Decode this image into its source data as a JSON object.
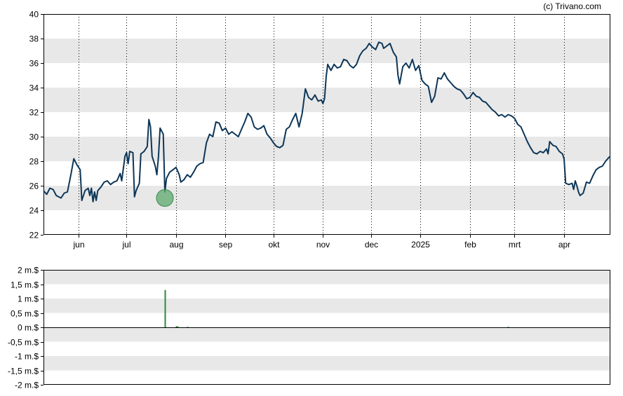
{
  "credit": "(c) Trivano.com",
  "colors": {
    "price_line": "#0d3658",
    "volume_bar": "#2a8a3a",
    "band_fill": "#e8e8e8",
    "marker_fill": "#5daa6e",
    "marker_stroke": "#3a8a4a",
    "frame": "#000000"
  },
  "chart_data": [
    {
      "type": "line",
      "title": "",
      "xlabel": "",
      "ylabel": "",
      "ylim": [
        22,
        40
      ],
      "y_ticks": [
        22,
        24,
        26,
        28,
        30,
        32,
        34,
        36,
        38,
        40
      ],
      "y_tick_labels": [
        "22",
        "24",
        "26",
        "28",
        "30",
        "32",
        "34",
        "36",
        "38",
        "40"
      ],
      "shaded_bands": [
        [
          24,
          26
        ],
        [
          28,
          30
        ],
        [
          32,
          34
        ],
        [
          36,
          38
        ]
      ],
      "x_range": [
        "2024-05-10",
        "2025-04-30"
      ],
      "x_ticks": [
        {
          "date": "2024-06-01",
          "label": "jun"
        },
        {
          "date": "2024-07-01",
          "label": "jul"
        },
        {
          "date": "2024-08-01",
          "label": "aug"
        },
        {
          "date": "2024-09-01",
          "label": "sep"
        },
        {
          "date": "2024-10-01",
          "label": "okt"
        },
        {
          "date": "2024-11-01",
          "label": "nov"
        },
        {
          "date": "2024-12-01",
          "label": "dec"
        },
        {
          "date": "2025-01-01",
          "label": "2025"
        },
        {
          "date": "2025-02-01",
          "label": "feb"
        },
        {
          "date": "2025-03-01",
          "label": "mrt"
        },
        {
          "date": "2025-04-01",
          "label": "apr"
        }
      ],
      "grid": "vertical dotted at month ticks",
      "series": [
        {
          "points": [
            [
              "2024-05-10",
              25.6
            ],
            [
              "2024-05-12",
              25.3
            ],
            [
              "2024-05-14",
              25.8
            ],
            [
              "2024-05-16",
              25.7
            ],
            [
              "2024-05-18",
              25.2
            ],
            [
              "2024-05-21",
              25.0
            ],
            [
              "2024-05-23",
              25.4
            ],
            [
              "2024-05-25",
              25.5
            ],
            [
              "2024-05-27",
              26.8
            ],
            [
              "2024-05-29",
              28.2
            ],
            [
              "2024-05-31",
              27.7
            ],
            [
              "2024-06-02",
              27.3
            ],
            [
              "2024-06-03",
              24.8
            ],
            [
              "2024-06-05",
              25.6
            ],
            [
              "2024-06-07",
              25.8
            ],
            [
              "2024-06-08",
              25.2
            ],
            [
              "2024-06-09",
              25.8
            ],
            [
              "2024-06-10",
              24.7
            ],
            [
              "2024-06-11",
              25.5
            ],
            [
              "2024-06-12",
              24.8
            ],
            [
              "2024-06-13",
              25.6
            ],
            [
              "2024-06-15",
              25.9
            ],
            [
              "2024-06-17",
              26.3
            ],
            [
              "2024-06-19",
              26.4
            ],
            [
              "2024-06-21",
              26.1
            ],
            [
              "2024-06-23",
              26.3
            ],
            [
              "2024-06-25",
              26.4
            ],
            [
              "2024-06-27",
              27.0
            ],
            [
              "2024-06-28",
              26.4
            ],
            [
              "2024-06-30",
              28.4
            ],
            [
              "2024-07-01",
              28.7
            ],
            [
              "2024-07-02",
              27.8
            ],
            [
              "2024-07-03",
              28.8
            ],
            [
              "2024-07-05",
              28.7
            ],
            [
              "2024-07-06",
              25.1
            ],
            [
              "2024-07-07",
              25.6
            ],
            [
              "2024-07-09",
              26.2
            ],
            [
              "2024-07-10",
              28.6
            ],
            [
              "2024-07-12",
              28.8
            ],
            [
              "2024-07-14",
              29.2
            ],
            [
              "2024-07-15",
              31.4
            ],
            [
              "2024-07-16",
              30.8
            ],
            [
              "2024-07-17",
              28.4
            ],
            [
              "2024-07-19",
              27.6
            ],
            [
              "2024-07-20",
              26.9
            ],
            [
              "2024-07-21",
              28.4
            ],
            [
              "2024-07-22",
              30.7
            ],
            [
              "2024-07-24",
              30.2
            ],
            [
              "2024-07-25",
              25.5
            ],
            [
              "2024-07-26",
              26.6
            ],
            [
              "2024-07-28",
              27.1
            ],
            [
              "2024-07-30",
              27.3
            ],
            [
              "2024-08-01",
              27.5
            ],
            [
              "2024-08-03",
              26.9
            ],
            [
              "2024-08-04",
              26.3
            ],
            [
              "2024-08-06",
              26.5
            ],
            [
              "2024-08-08",
              26.9
            ],
            [
              "2024-08-10",
              26.7
            ],
            [
              "2024-08-12",
              27.1
            ],
            [
              "2024-08-14",
              27.6
            ],
            [
              "2024-08-16",
              27.8
            ],
            [
              "2024-08-18",
              27.9
            ],
            [
              "2024-08-20",
              29.5
            ],
            [
              "2024-08-22",
              30.2
            ],
            [
              "2024-08-24",
              30.0
            ],
            [
              "2024-08-26",
              31.2
            ],
            [
              "2024-08-28",
              31.1
            ],
            [
              "2024-08-30",
              30.5
            ],
            [
              "2024-09-01",
              30.7
            ],
            [
              "2024-09-03",
              30.2
            ],
            [
              "2024-09-05",
              30.4
            ],
            [
              "2024-09-07",
              30.2
            ],
            [
              "2024-09-09",
              30.0
            ],
            [
              "2024-09-11",
              30.6
            ],
            [
              "2024-09-13",
              31.2
            ],
            [
              "2024-09-15",
              31.9
            ],
            [
              "2024-09-17",
              31.6
            ],
            [
              "2024-09-19",
              30.8
            ],
            [
              "2024-09-21",
              30.6
            ],
            [
              "2024-09-23",
              30.7
            ],
            [
              "2024-09-25",
              30.9
            ],
            [
              "2024-09-27",
              30.2
            ],
            [
              "2024-09-29",
              29.9
            ],
            [
              "2024-10-01",
              29.5
            ],
            [
              "2024-10-03",
              29.2
            ],
            [
              "2024-10-05",
              29.1
            ],
            [
              "2024-10-07",
              29.3
            ],
            [
              "2024-10-09",
              30.6
            ],
            [
              "2024-10-11",
              30.8
            ],
            [
              "2024-10-13",
              31.4
            ],
            [
              "2024-10-15",
              31.9
            ],
            [
              "2024-10-17",
              30.8
            ],
            [
              "2024-10-19",
              31.9
            ],
            [
              "2024-10-21",
              33.9
            ],
            [
              "2024-10-23",
              33.2
            ],
            [
              "2024-10-25",
              33.0
            ],
            [
              "2024-10-27",
              33.4
            ],
            [
              "2024-10-29",
              32.9
            ],
            [
              "2024-10-31",
              33.0
            ],
            [
              "2024-11-01",
              32.7
            ],
            [
              "2024-11-02",
              33.1
            ],
            [
              "2024-11-03",
              34.9
            ],
            [
              "2024-11-04",
              35.9
            ],
            [
              "2024-11-06",
              35.4
            ],
            [
              "2024-11-08",
              35.9
            ],
            [
              "2024-11-10",
              35.6
            ],
            [
              "2024-11-12",
              35.7
            ],
            [
              "2024-11-14",
              36.3
            ],
            [
              "2024-11-16",
              36.2
            ],
            [
              "2024-11-18",
              35.8
            ],
            [
              "2024-11-20",
              35.6
            ],
            [
              "2024-11-22",
              35.9
            ],
            [
              "2024-11-24",
              36.6
            ],
            [
              "2024-11-26",
              37.0
            ],
            [
              "2024-11-28",
              37.2
            ],
            [
              "2024-11-30",
              37.6
            ],
            [
              "2024-12-02",
              37.3
            ],
            [
              "2024-12-04",
              37.1
            ],
            [
              "2024-12-06",
              37.7
            ],
            [
              "2024-12-08",
              37.6
            ],
            [
              "2024-12-09",
              37.2
            ],
            [
              "2024-12-11",
              37.4
            ],
            [
              "2024-12-13",
              37.6
            ],
            [
              "2024-12-15",
              36.9
            ],
            [
              "2024-12-17",
              36.5
            ],
            [
              "2024-12-18",
              35.0
            ],
            [
              "2024-12-19",
              34.3
            ],
            [
              "2024-12-21",
              35.7
            ],
            [
              "2024-12-23",
              36.0
            ],
            [
              "2024-12-25",
              35.6
            ],
            [
              "2024-12-27",
              36.3
            ],
            [
              "2024-12-29",
              35.4
            ],
            [
              "2024-12-31",
              35.8
            ],
            [
              "2025-01-02",
              34.6
            ],
            [
              "2025-01-04",
              34.3
            ],
            [
              "2025-01-06",
              34.1
            ],
            [
              "2025-01-08",
              32.8
            ],
            [
              "2025-01-10",
              33.3
            ],
            [
              "2025-01-12",
              34.8
            ],
            [
              "2025-01-14",
              34.7
            ],
            [
              "2025-01-16",
              35.2
            ],
            [
              "2025-01-18",
              34.7
            ],
            [
              "2025-01-20",
              34.4
            ],
            [
              "2025-01-22",
              34.1
            ],
            [
              "2025-01-24",
              33.9
            ],
            [
              "2025-01-26",
              33.8
            ],
            [
              "2025-01-28",
              33.5
            ],
            [
              "2025-01-30",
              33.1
            ],
            [
              "2025-02-01",
              33.2
            ],
            [
              "2025-02-03",
              33.6
            ],
            [
              "2025-02-05",
              33.3
            ],
            [
              "2025-02-07",
              33.2
            ],
            [
              "2025-02-09",
              32.9
            ],
            [
              "2025-02-11",
              32.8
            ],
            [
              "2025-02-13",
              32.5
            ],
            [
              "2025-02-15",
              32.2
            ],
            [
              "2025-02-17",
              32.0
            ],
            [
              "2025-02-19",
              31.7
            ],
            [
              "2025-02-21",
              31.8
            ],
            [
              "2025-02-23",
              31.6
            ],
            [
              "2025-02-25",
              31.8
            ],
            [
              "2025-02-27",
              31.7
            ],
            [
              "2025-03-01",
              31.5
            ],
            [
              "2025-03-03",
              31.0
            ],
            [
              "2025-03-05",
              30.8
            ],
            [
              "2025-03-07",
              30.2
            ],
            [
              "2025-03-09",
              29.6
            ],
            [
              "2025-03-11",
              29.1
            ],
            [
              "2025-03-13",
              28.7
            ],
            [
              "2025-03-15",
              28.6
            ],
            [
              "2025-03-17",
              28.8
            ],
            [
              "2025-03-19",
              28.7
            ],
            [
              "2025-03-21",
              29.0
            ],
            [
              "2025-03-22",
              28.6
            ],
            [
              "2025-03-23",
              29.6
            ],
            [
              "2025-03-25",
              29.3
            ],
            [
              "2025-03-27",
              29.2
            ],
            [
              "2025-03-29",
              28.8
            ],
            [
              "2025-03-31",
              28.6
            ],
            [
              "2025-04-01",
              28.2
            ],
            [
              "2025-04-02",
              26.2
            ],
            [
              "2025-04-04",
              26.1
            ],
            [
              "2025-04-06",
              26.2
            ],
            [
              "2025-04-07",
              25.7
            ],
            [
              "2025-04-08",
              26.4
            ],
            [
              "2025-04-09",
              26.0
            ],
            [
              "2025-04-10",
              25.5
            ],
            [
              "2025-04-11",
              25.2
            ],
            [
              "2025-04-13",
              25.4
            ],
            [
              "2025-04-15",
              26.3
            ],
            [
              "2025-04-17",
              26.2
            ],
            [
              "2025-04-19",
              26.8
            ],
            [
              "2025-04-21",
              27.3
            ],
            [
              "2025-04-23",
              27.5
            ],
            [
              "2025-04-25",
              27.6
            ],
            [
              "2025-04-27",
              28.0
            ],
            [
              "2025-04-29",
              28.3
            ],
            [
              "2025-04-30",
              28.4
            ]
          ]
        }
      ],
      "annotations": [
        {
          "type": "marker",
          "date": "2024-07-25",
          "value": 25.0
        }
      ]
    },
    {
      "type": "bar",
      "title": "",
      "xlabel": "",
      "ylabel": "",
      "ylim": [
        -2,
        2
      ],
      "y_ticks": [
        -2,
        -1.5,
        -1,
        -0.5,
        0,
        0.5,
        1,
        1.5,
        2
      ],
      "y_tick_labels": [
        "-2 m.$",
        "-1,5 m.$",
        "-1 m.$",
        "-0,5 m.$",
        "0 m.$",
        "0,5 m.$",
        "1 m.$",
        "1,5 m.$",
        "2 m.$"
      ],
      "shaded_bands": [
        [
          1.5,
          2
        ],
        [
          0.5,
          1
        ],
        [
          -0.5,
          0
        ],
        [
          -1.5,
          -1
        ]
      ],
      "bars": [
        {
          "date": "2024-07-25",
          "value": 1.3
        },
        {
          "date": "2024-08-01",
          "value": 0.04
        },
        {
          "date": "2024-08-02",
          "value": 0.03
        },
        {
          "date": "2024-08-08",
          "value": 0.02
        },
        {
          "date": "2025-02-25",
          "value": 0.02
        }
      ]
    }
  ]
}
